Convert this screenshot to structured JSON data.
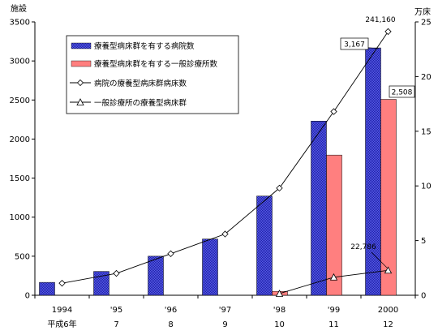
{
  "chart_data": {
    "type": "bar+line",
    "categories": [
      "1994",
      "'95",
      "'96",
      "'97",
      "'98",
      "'99",
      "2000"
    ],
    "categories_sub": [
      "平成6年",
      "7",
      "8",
      "9",
      "10",
      "11",
      "12"
    ],
    "y_left": {
      "label": "施設",
      "range": [
        0,
        3500
      ],
      "ticks": [
        0,
        500,
        1000,
        1500,
        2000,
        2500,
        3000,
        3500
      ]
    },
    "y_right": {
      "label": "万床",
      "range": [
        0,
        25
      ],
      "ticks": [
        0,
        5,
        10,
        15,
        20,
        25
      ]
    },
    "series": [
      {
        "name": "療養型病床群を有する病院数",
        "kind": "bar",
        "axis": "left",
        "color": "#3b3fd0",
        "values": [
          165,
          305,
          500,
          720,
          1270,
          2230,
          3167
        ]
      },
      {
        "name": "療養型病床群を有する一般診療所数",
        "kind": "bar",
        "axis": "left",
        "color": "#ff7f7f",
        "values": [
          null,
          null,
          null,
          null,
          50,
          1795,
          2508
        ]
      },
      {
        "name": "病院の療養型病床群病床数",
        "kind": "line",
        "axis": "right",
        "marker": "diamond",
        "values": [
          1.1,
          2.0,
          3.8,
          5.6,
          9.8,
          16.8,
          24.116
        ]
      },
      {
        "name": "一般診療所の療養型病床群",
        "kind": "line",
        "axis": "right",
        "marker": "triangle",
        "values": [
          null,
          null,
          null,
          null,
          0.15,
          1.65,
          2.2786
        ]
      }
    ],
    "annotations": [
      "3,167",
      "2,508",
      "241,160",
      "22,786"
    ],
    "grid": false,
    "legend_position": "top-left"
  }
}
